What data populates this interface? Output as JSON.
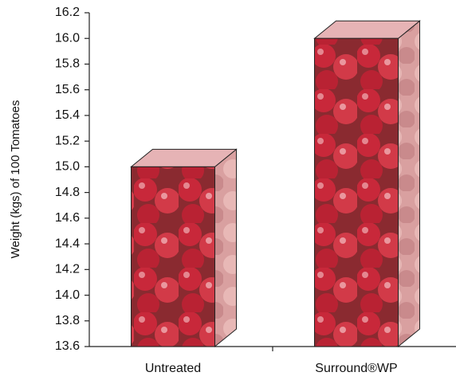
{
  "chart_data": {
    "type": "bar3d",
    "y_label": "Weight (kgs) of 100 Tomatoes",
    "categories": [
      "Untreated",
      "Surround®WP"
    ],
    "values": [
      15.0,
      16.0
    ],
    "color": "#c8283a",
    "ylim": [
      13.6,
      16.2
    ],
    "yticks": [
      13.6,
      13.8,
      {
        "value": 14,
        "label": "14.0"
      },
      14.2,
      14.4,
      14.6,
      14.8,
      {
        "value": 15,
        "label": "15.0"
      },
      15.2,
      15.4,
      15.6,
      15.8,
      {
        "value": 16,
        "label": "16.0"
      },
      16.2
    ]
  }
}
